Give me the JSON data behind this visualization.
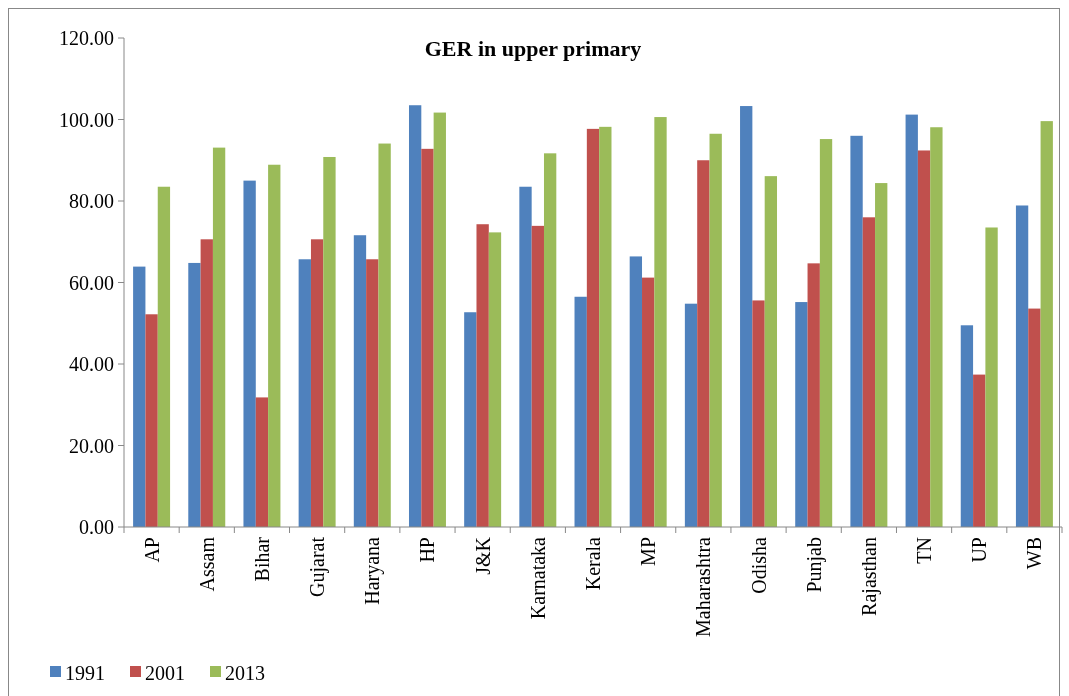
{
  "chart_data": {
    "type": "bar",
    "title": "GER in upper primary",
    "categories": [
      "AP",
      "Assam",
      "Bihar",
      "Gujarat",
      "Haryana",
      "HP",
      "J&K",
      "Karnataka",
      "Kerala",
      "MP",
      "Maharashtra",
      "Odisha",
      "Punjab",
      "Rajasthan",
      "TN",
      "UP",
      "WB"
    ],
    "series": [
      {
        "name": "1991",
        "color": "#4f81bd",
        "values": [
          63.9,
          64.8,
          85.0,
          65.7,
          71.6,
          103.5,
          52.7,
          83.5,
          56.5,
          66.4,
          54.8,
          103.3,
          55.2,
          96.0,
          101.2,
          49.5,
          78.9
        ]
      },
      {
        "name": "2001",
        "color": "#c0504d",
        "values": [
          52.2,
          70.6,
          31.8,
          70.6,
          65.7,
          92.8,
          74.3,
          73.9,
          97.7,
          61.2,
          90.0,
          55.6,
          64.7,
          76.0,
          92.4,
          37.4,
          53.6
        ]
      },
      {
        "name": "2013",
        "color": "#9bbb59",
        "values": [
          83.5,
          93.1,
          88.9,
          90.8,
          94.1,
          101.7,
          72.3,
          91.7,
          98.2,
          100.6,
          96.5,
          86.1,
          95.2,
          84.4,
          98.1,
          73.5,
          99.6
        ]
      }
    ],
    "ylim": [
      0,
      120
    ],
    "yticks": [
      {
        "value": 0,
        "label": "0.00"
      },
      {
        "value": 20,
        "label": "20.00"
      },
      {
        "value": 40,
        "label": "40.00"
      },
      {
        "value": 60,
        "label": "60.00"
      },
      {
        "value": 80,
        "label": "80.00"
      },
      {
        "value": 100,
        "label": "100.00"
      },
      {
        "value": 120,
        "label": "120.00"
      }
    ],
    "legend": "bottom"
  }
}
